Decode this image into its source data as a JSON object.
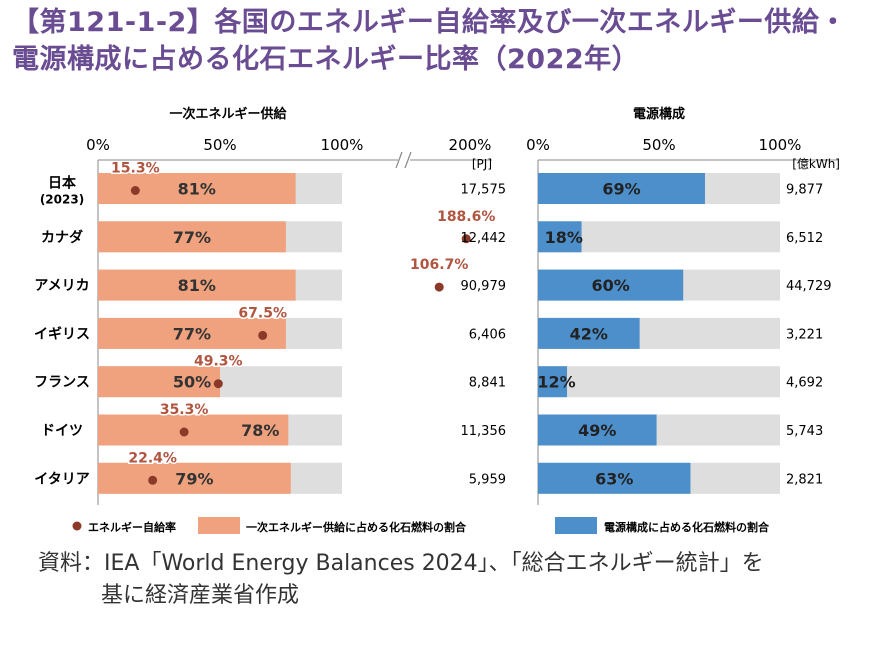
{
  "title_line1": "【第121-1-2】各国のエネルギー自給率及び一次エネルギー供給・",
  "title_line2": "電源構成に占める化石エネルギー比率（2022年）",
  "source_line1": "資料：IEA「World Energy Balances 2024」、「総合エネルギー統計」を",
  "source_line2": "基に経済産業省作成",
  "colors": {
    "primary_fossil": "#f0a27e",
    "power_fossil": "#4d8fcb",
    "remainder": "#dedede",
    "self_sufficiency_dot": "#8b3a2a",
    "title": "#6a4c93"
  },
  "chart_data": [
    {
      "type": "bar",
      "title": "一次エネルギー供給",
      "orientation": "horizontal",
      "unit": "[PJ]",
      "categories": [
        "日本",
        "カナダ",
        "アメリカ",
        "イギリス",
        "フランス",
        "ドイツ",
        "イタリア"
      ],
      "category_sublabels": [
        "(2023)",
        "",
        "",
        "",
        "",
        "",
        ""
      ],
      "x_ticks": [
        "0%",
        "50%",
        "100%",
        "200%"
      ],
      "axis_break": "between 100% and 200%",
      "xlim": [
        0,
        200
      ],
      "series": [
        {
          "name": "一次エネルギー供給に占める化石燃料の割合",
          "values": [
            81,
            77,
            81,
            77,
            50,
            78,
            79
          ],
          "labels": [
            "81%",
            "77%",
            "81%",
            "77%",
            "50%",
            "78%",
            "79%"
          ]
        },
        {
          "name": "エネルギー自給率",
          "type": "scatter",
          "values": [
            15.3,
            188.6,
            106.7,
            67.5,
            49.3,
            35.3,
            22.4
          ],
          "labels": [
            "15.3%",
            "188.6%",
            "106.7%",
            "67.5%",
            "49.3%",
            "35.3%",
            "22.4%"
          ]
        }
      ],
      "totals": [
        "17,575",
        "12,442",
        "90,979",
        "6,406",
        "8,841",
        "11,356",
        "5,959"
      ]
    },
    {
      "type": "bar",
      "title": "電源構成",
      "orientation": "horizontal",
      "unit": "[億kWh]",
      "categories": [
        "日本",
        "カナダ",
        "アメリカ",
        "イギリス",
        "フランス",
        "ドイツ",
        "イタリア"
      ],
      "x_ticks": [
        "0%",
        "50%",
        "100%"
      ],
      "xlim": [
        0,
        100
      ],
      "series": [
        {
          "name": "電源構成に占める化石燃料の割合",
          "values": [
            69,
            18,
            60,
            42,
            12,
            49,
            63
          ],
          "labels": [
            "69%",
            "18%",
            "60%",
            "42%",
            "12%",
            "49%",
            "63%"
          ]
        }
      ],
      "totals": [
        "9,877",
        "6,512",
        "44,729",
        "3,221",
        "4,692",
        "5,743",
        "2,821"
      ]
    }
  ],
  "legend": [
    {
      "label": "エネルギー自給率",
      "marker": "dot"
    },
    {
      "label": "一次エネルギー供給に占める化石燃料の割合",
      "marker": "orange-box"
    },
    {
      "label": "電源構成に占める化石燃料の割合",
      "marker": "blue-box"
    }
  ]
}
